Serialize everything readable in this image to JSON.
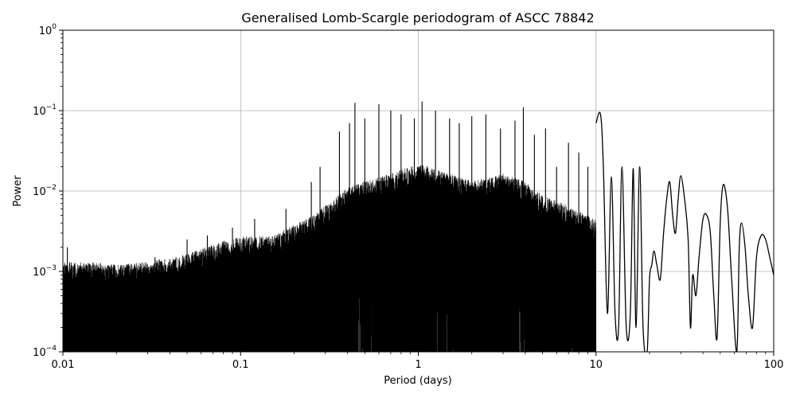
{
  "chart_data": {
    "type": "line",
    "title": "Generalised Lomb-Scargle periodogram of ASCC 78842",
    "xlabel": "Period (days)",
    "ylabel": "Power",
    "xscale": "log",
    "yscale": "log",
    "xlim": [
      0.01,
      100
    ],
    "ylim": [
      0.0001,
      1
    ],
    "grid": true,
    "line_color": "#000000",
    "x_ticks": [
      {
        "value": 0.01,
        "label": "0.01"
      },
      {
        "value": 0.1,
        "label": "0.1"
      },
      {
        "value": 1,
        "label": "1"
      },
      {
        "value": 10,
        "label": "10"
      },
      {
        "value": 100,
        "label": "100"
      }
    ],
    "y_ticks": [
      {
        "value": 0.0001,
        "base": "10",
        "exp": "−4"
      },
      {
        "value": 0.001,
        "base": "10",
        "exp": "−3"
      },
      {
        "value": 0.01,
        "base": "10",
        "exp": "−2"
      },
      {
        "value": 0.1,
        "base": "10",
        "exp": "−1"
      },
      {
        "value": 1,
        "base": "10",
        "exp": "0"
      }
    ],
    "envelope": {
      "x": [
        0.01,
        0.015,
        0.02,
        0.03,
        0.05,
        0.08,
        0.1,
        0.15,
        0.2,
        0.25,
        0.3,
        0.4,
        0.5,
        0.7,
        1.0,
        1.5,
        2.0,
        3.0,
        4.0,
        5.0,
        7.0,
        10.0
      ],
      "y": [
        0.0012,
        0.0012,
        0.0011,
        0.0012,
        0.0015,
        0.0022,
        0.0025,
        0.0025,
        0.0035,
        0.0045,
        0.006,
        0.01,
        0.012,
        0.015,
        0.02,
        0.015,
        0.012,
        0.015,
        0.012,
        0.008,
        0.006,
        0.004
      ]
    },
    "peaks": [
      {
        "x": 0.0106,
        "y": 0.002
      },
      {
        "x": 0.0124,
        "y": 0.0011
      },
      {
        "x": 0.0141,
        "y": 0.00125
      },
      {
        "x": 0.018,
        "y": 0.0012
      },
      {
        "x": 0.025,
        "y": 0.001
      },
      {
        "x": 0.033,
        "y": 0.0015
      },
      {
        "x": 0.05,
        "y": 0.0025
      },
      {
        "x": 0.065,
        "y": 0.0028
      },
      {
        "x": 0.09,
        "y": 0.0035
      },
      {
        "x": 0.12,
        "y": 0.0045
      },
      {
        "x": 0.18,
        "y": 0.006
      },
      {
        "x": 0.25,
        "y": 0.013
      },
      {
        "x": 0.28,
        "y": 0.02
      },
      {
        "x": 0.36,
        "y": 0.055
      },
      {
        "x": 0.41,
        "y": 0.07
      },
      {
        "x": 0.44,
        "y": 0.125
      },
      {
        "x": 0.5,
        "y": 0.08
      },
      {
        "x": 0.6,
        "y": 0.12
      },
      {
        "x": 0.7,
        "y": 0.1
      },
      {
        "x": 0.8,
        "y": 0.09
      },
      {
        "x": 0.95,
        "y": 0.08
      },
      {
        "x": 1.05,
        "y": 0.13
      },
      {
        "x": 1.25,
        "y": 0.1
      },
      {
        "x": 1.5,
        "y": 0.08
      },
      {
        "x": 1.7,
        "y": 0.07
      },
      {
        "x": 2.0,
        "y": 0.085
      },
      {
        "x": 2.4,
        "y": 0.09
      },
      {
        "x": 2.9,
        "y": 0.06
      },
      {
        "x": 3.5,
        "y": 0.075
      },
      {
        "x": 3.9,
        "y": 0.11
      },
      {
        "x": 4.5,
        "y": 0.05
      },
      {
        "x": 5.2,
        "y": 0.06
      },
      {
        "x": 6.0,
        "y": 0.02
      },
      {
        "x": 7.0,
        "y": 0.04
      },
      {
        "x": 8.0,
        "y": 0.03
      },
      {
        "x": 9.0,
        "y": 0.02
      }
    ],
    "long_period_curve": {
      "x": [
        10.0,
        10.6,
        11.0,
        11.6,
        12.2,
        12.8,
        13.4,
        14.0,
        14.8,
        15.6,
        16.2,
        16.8,
        17.6,
        18.4,
        19.4,
        20.0,
        20.6,
        21.2,
        22.0,
        23.0,
        24.0,
        25.0,
        26.0,
        27.0,
        28.0,
        29.0,
        30.0,
        31.5,
        33.0,
        34.0,
        35.0,
        36.5,
        38.0,
        40.0,
        42.0,
        44.0,
        46.0,
        48.0,
        50.0,
        52.0,
        55.0,
        58.0,
        62.0,
        64.0,
        66.0,
        69.0,
        72.0,
        76.0,
        80.0,
        85.0,
        90.0,
        95.0,
        100.0
      ],
      "y": [
        0.07,
        0.09,
        0.02,
        0.0003,
        0.015,
        0.0003,
        0.0002,
        0.02,
        0.0002,
        0.0003,
        0.019,
        0.0002,
        0.02,
        0.0002,
        0.0001,
        0.0008,
        0.0012,
        0.0018,
        0.0012,
        0.0008,
        0.003,
        0.008,
        0.013,
        0.005,
        0.003,
        0.008,
        0.0155,
        0.008,
        0.0025,
        0.0002,
        0.0009,
        0.0005,
        0.0015,
        0.0045,
        0.005,
        0.003,
        0.0005,
        0.00015,
        0.004,
        0.012,
        0.006,
        0.0008,
        0.0001,
        0.002,
        0.004,
        0.002,
        0.0005,
        0.0002,
        0.0015,
        0.0028,
        0.0025,
        0.0015,
        0.0009
      ]
    }
  }
}
